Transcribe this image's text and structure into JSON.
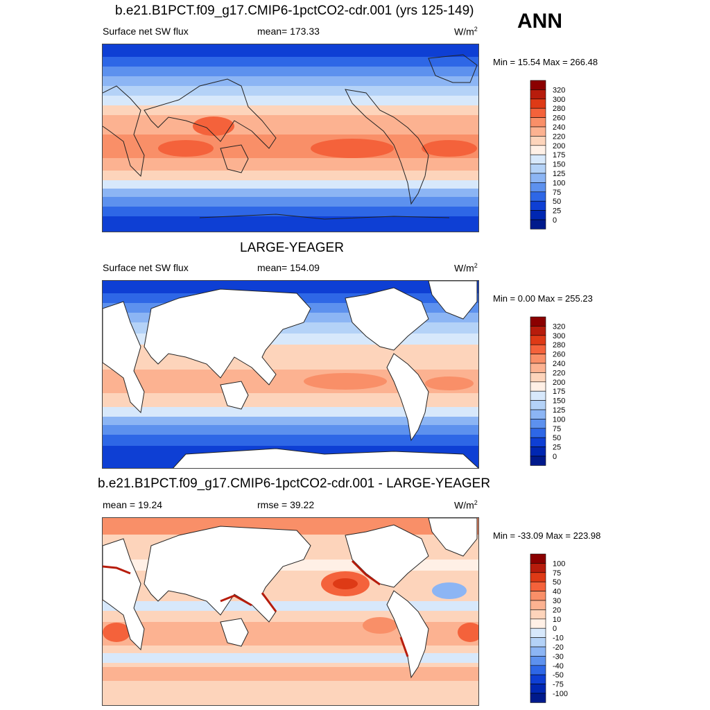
{
  "season": "ANN",
  "panels": [
    {
      "title": "b.e21.B1PCT.f09_g17.CMIP6-1pctCO2-cdr.001 (yrs 125-149)",
      "variable": "Surface net SW flux",
      "stat_text": "mean= 173.33",
      "units": "W/m",
      "units_sup": "2",
      "minmax": "Min =  15.54 Max = 266.48",
      "levels": [
        "320",
        "300",
        "280",
        "260",
        "240",
        "220",
        "200",
        "175",
        "150",
        "125",
        "100",
        "75",
        "50",
        "25",
        "0"
      ],
      "colors": [
        "#8b0000",
        "#b71c0c",
        "#de3a16",
        "#f4623b",
        "#f98f68",
        "#fcb291",
        "#fdd4bb",
        "#fff0e6",
        "#d7e8fb",
        "#b4d2f7",
        "#8cb5f4",
        "#5d91ee",
        "#2e67e6",
        "#0e3fd4",
        "#0027b2",
        "#001a8c"
      ],
      "land_masked": false
    },
    {
      "title": "LARGE-YEAGER",
      "variable": "Surface net SW flux",
      "stat_text": "mean= 154.09",
      "units": "W/m",
      "units_sup": "2",
      "minmax": "Min =   0.00 Max = 255.23",
      "levels": [
        "320",
        "300",
        "280",
        "260",
        "240",
        "220",
        "200",
        "175",
        "150",
        "125",
        "100",
        "75",
        "50",
        "25",
        "0"
      ],
      "colors": [
        "#8b0000",
        "#b71c0c",
        "#de3a16",
        "#f4623b",
        "#f98f68",
        "#fcb291",
        "#fdd4bb",
        "#fff0e6",
        "#d7e8fb",
        "#b4d2f7",
        "#8cb5f4",
        "#5d91ee",
        "#2e67e6",
        "#0e3fd4",
        "#0027b2",
        "#001a8c"
      ],
      "land_masked": true
    },
    {
      "title": "b.e21.B1PCT.f09_g17.CMIP6-1pctCO2-cdr.001 - LARGE-YEAGER",
      "variable": "mean =  19.24",
      "stat_text": "rmse =  39.22",
      "units": "W/m",
      "units_sup": "2",
      "minmax": "Min = -33.09 Max = 223.98",
      "levels": [
        "100",
        "75",
        "50",
        "40",
        "30",
        "20",
        "10",
        "0",
        "-10",
        "-20",
        "-30",
        "-40",
        "-50",
        "-75",
        "-100"
      ],
      "colors": [
        "#8b0000",
        "#b71c0c",
        "#de3a16",
        "#f4623b",
        "#f98f68",
        "#fcb291",
        "#fdd4bb",
        "#fff0e6",
        "#d7e8fb",
        "#b4d2f7",
        "#8cb5f4",
        "#5d91ee",
        "#2e67e6",
        "#0e3fd4",
        "#0027b2",
        "#001a8c"
      ],
      "land_masked": true
    }
  ]
}
